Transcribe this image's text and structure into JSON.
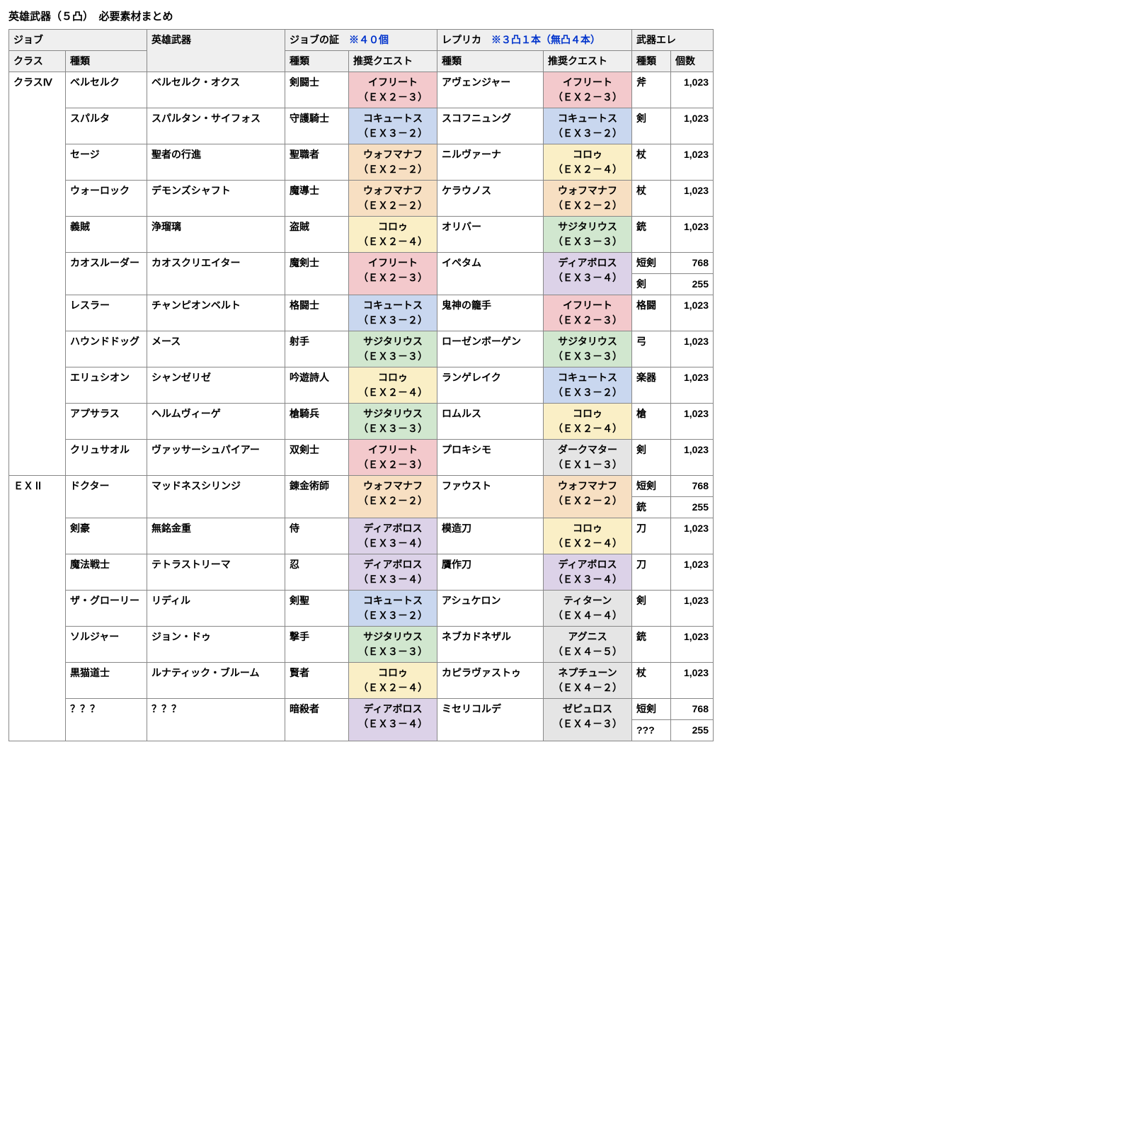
{
  "title": "英雄武器（５凸）　必要素材まとめ",
  "header": {
    "job_group": "ジョブ",
    "hero_weapon": "英雄武器",
    "proof_group": "ジョブの証　",
    "proof_note": "※４０個",
    "replica_group": "レプリカ　",
    "replica_note": "※３凸１本（無凸４本）",
    "ele_group": "武器エレ",
    "class": "クラス",
    "job_type": "種類",
    "proof_type": "種類",
    "proof_quest": "推奨クエスト",
    "replica_type": "種類",
    "replica_quest": "推奨クエスト",
    "ele_type": "種類",
    "ele_count": "個数"
  },
  "quest_colors": {
    "ifrit": "#f3c9cc",
    "cocytus": "#c9d7ef",
    "vohumanah": "#f7dfc2",
    "corow": "#faefc6",
    "sagittarius": "#d1e7cf",
    "diablos": "#dcd2e8",
    "darkmatter": "#e5e5e5",
    "titan": "#e5e5e5",
    "agni": "#e5e5e5",
    "neptune": "#e5e5e5",
    "zephyrus": "#e5e5e5"
  },
  "groups": [
    {
      "class": "クラスⅣ",
      "rows": [
        {
          "job": "ベルセルク",
          "weapon": "ベルセルク・オクス",
          "proof": "剣闘士",
          "pq": "イフリート\n（ＥＸ２－３）",
          "pq_c": "ifrit",
          "replica": "アヴェンジャー",
          "rq": "イフリート\n（ＥＸ２－３）",
          "rq_c": "ifrit",
          "ele": [
            [
              "斧",
              "1,023"
            ]
          ]
        },
        {
          "job": "スパルタ",
          "weapon": "スパルタン・サイフォス",
          "proof": "守護騎士",
          "pq": "コキュートス\n（ＥＸ３－２）",
          "pq_c": "cocytus",
          "replica": "スコフニュング",
          "rq": "コキュートス\n（ＥＸ３－２）",
          "rq_c": "cocytus",
          "ele": [
            [
              "剣",
              "1,023"
            ]
          ]
        },
        {
          "job": "セージ",
          "weapon": "聖者の行進",
          "proof": "聖職者",
          "pq": "ウォフマナフ\n（ＥＸ２－２）",
          "pq_c": "vohumanah",
          "replica": "ニルヴァーナ",
          "rq": "コロゥ\n（ＥＸ２－４）",
          "rq_c": "corow",
          "ele": [
            [
              "杖",
              "1,023"
            ]
          ]
        },
        {
          "job": "ウォーロック",
          "weapon": "デモンズシャフト",
          "proof": "魔導士",
          "pq": "ウォフマナフ\n（ＥＸ２－２）",
          "pq_c": "vohumanah",
          "replica": "ケラウノス",
          "rq": "ウォフマナフ\n（ＥＸ２－２）",
          "rq_c": "vohumanah",
          "ele": [
            [
              "杖",
              "1,023"
            ]
          ]
        },
        {
          "job": "義賊",
          "weapon": "浄瑠璃",
          "proof": "盗賊",
          "pq": "コロゥ\n（ＥＸ２－４）",
          "pq_c": "corow",
          "replica": "オリバー",
          "rq": "サジタリウス\n（ＥＸ３－３）",
          "rq_c": "sagittarius",
          "ele": [
            [
              "銃",
              "1,023"
            ]
          ]
        },
        {
          "job": "カオスルーダー",
          "weapon": "カオスクリエイター",
          "proof": "魔剣士",
          "pq": "イフリート\n（ＥＸ２－３）",
          "pq_c": "ifrit",
          "replica": "イペタム",
          "rq": "ディアボロス\n（ＥＸ３－４）",
          "rq_c": "diablos",
          "ele": [
            [
              "短剣",
              "768"
            ],
            [
              "剣",
              "255"
            ]
          ]
        },
        {
          "job": "レスラー",
          "weapon": "チャンピオンベルト",
          "proof": "格闘士",
          "pq": "コキュートス\n（ＥＸ３－２）",
          "pq_c": "cocytus",
          "replica": "鬼神の籠手",
          "rq": "イフリート\n（ＥＸ２－３）",
          "rq_c": "ifrit",
          "ele": [
            [
              "格闘",
              "1,023"
            ]
          ]
        },
        {
          "job": "ハウンドドッグ",
          "weapon": "メース",
          "proof": "射手",
          "pq": "サジタリウス\n（ＥＸ３－３）",
          "pq_c": "sagittarius",
          "replica": "ローゼンボーゲン",
          "rq": "サジタリウス\n（ＥＸ３－３）",
          "rq_c": "sagittarius",
          "ele": [
            [
              "弓",
              "1,023"
            ]
          ]
        },
        {
          "job": "エリュシオン",
          "weapon": "シャンゼリゼ",
          "proof": "吟遊詩人",
          "pq": "コロゥ\n（ＥＸ２－４）",
          "pq_c": "corow",
          "replica": "ランゲレイク",
          "rq": "コキュートス\n（ＥＸ３－２）",
          "rq_c": "cocytus",
          "ele": [
            [
              "楽器",
              "1,023"
            ]
          ]
        },
        {
          "job": "アプサラス",
          "weapon": "ヘルムヴィーゲ",
          "proof": "槍騎兵",
          "pq": "サジタリウス\n（ＥＸ３－３）",
          "pq_c": "sagittarius",
          "replica": "ロムルス",
          "rq": "コロゥ\n（ＥＸ２－４）",
          "rq_c": "corow",
          "ele": [
            [
              "槍",
              "1,023"
            ]
          ]
        },
        {
          "job": "クリュサオル",
          "weapon": "ヴァッサーシュパイアー",
          "proof": "双剣士",
          "pq": "イフリート\n（ＥＸ２－３）",
          "pq_c": "ifrit",
          "replica": "プロキシモ",
          "rq": "ダークマター\n（ＥＸ１－３）",
          "rq_c": "darkmatter",
          "ele": [
            [
              "剣",
              "1,023"
            ]
          ]
        }
      ]
    },
    {
      "class": "ＥＸⅡ",
      "rows": [
        {
          "job": "ドクター",
          "weapon": "マッドネスシリンジ",
          "proof": "錬金術師",
          "pq": "ウォフマナフ\n（ＥＸ２－２）",
          "pq_c": "vohumanah",
          "replica": "ファウスト",
          "rq": "ウォフマナフ\n（ＥＸ２－２）",
          "rq_c": "vohumanah",
          "ele": [
            [
              "短剣",
              "768"
            ],
            [
              "銃",
              "255"
            ]
          ]
        },
        {
          "job": "剣豪",
          "weapon": "無銘金重",
          "proof": "侍",
          "pq": "ディアボロス\n（ＥＸ３－４）",
          "pq_c": "diablos",
          "replica": "模造刀",
          "rq": "コロゥ\n（ＥＸ２－４）",
          "rq_c": "corow",
          "ele": [
            [
              "刀",
              "1,023"
            ]
          ]
        },
        {
          "job": "魔法戦士",
          "weapon": "テトラストリーマ",
          "proof": "忍",
          "pq": "ディアボロス\n（ＥＸ３－４）",
          "pq_c": "diablos",
          "replica": "贋作刀",
          "rq": "ディアボロス\n（ＥＸ３－４）",
          "rq_c": "diablos",
          "ele": [
            [
              "刀",
              "1,023"
            ]
          ]
        },
        {
          "job": "ザ・グローリー",
          "weapon": "リディル",
          "proof": "剣聖",
          "pq": "コキュートス\n（ＥＸ３－２）",
          "pq_c": "cocytus",
          "replica": "アシュケロン",
          "rq": "ティターン\n（ＥＸ４－４）",
          "rq_c": "titan",
          "ele": [
            [
              "剣",
              "1,023"
            ]
          ]
        },
        {
          "job": "ソルジャー",
          "weapon": "ジョン・ドゥ",
          "proof": "撃手",
          "pq": "サジタリウス\n（ＥＸ３－３）",
          "pq_c": "sagittarius",
          "replica": "ネブカドネザル",
          "rq": "アグニス\n（ＥＸ４－５）",
          "rq_c": "agni",
          "ele": [
            [
              "銃",
              "1,023"
            ]
          ]
        },
        {
          "job": "黒猫道士",
          "weapon": "ルナティック・ブルーム",
          "proof": "賢者",
          "pq": "コロゥ\n（ＥＸ２－４）",
          "pq_c": "corow",
          "replica": "カピラヴァストゥ",
          "rq": "ネプチューン\n（ＥＸ４－２）",
          "rq_c": "neptune",
          "ele": [
            [
              "杖",
              "1,023"
            ]
          ]
        },
        {
          "job": "？？？",
          "weapon": "？？？",
          "proof": "暗殺者",
          "pq": "ディアボロス\n（ＥＸ３－４）",
          "pq_c": "diablos",
          "replica": "ミセリコルデ",
          "rq": "ゼピュロス\n（ＥＸ４－３）",
          "rq_c": "zephyrus",
          "ele": [
            [
              "短剣",
              "768"
            ],
            [
              "???",
              "255"
            ]
          ]
        }
      ]
    }
  ]
}
